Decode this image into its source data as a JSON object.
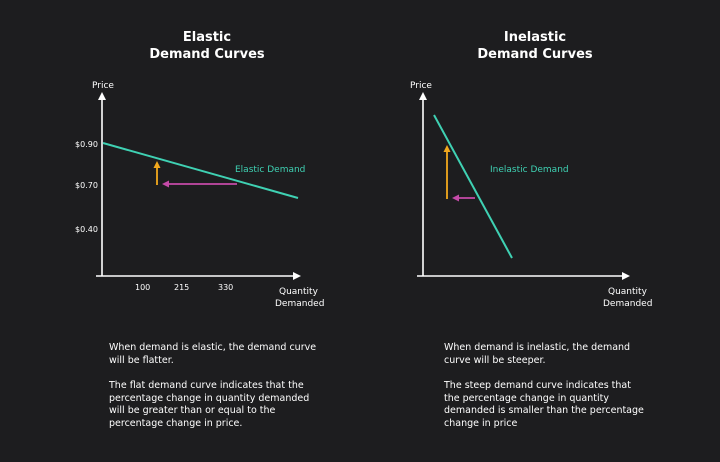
{
  "left_panel": {
    "title": "Elastic\nDemand Curves",
    "y_axis_label": "Price",
    "x_axis_label": "Quantity\nDemanded",
    "y_ticks": [
      "$0.90",
      "$0.70",
      "$0.40"
    ],
    "x_ticks": [
      "100",
      "215",
      "330"
    ],
    "curve_label": "Elastic Demand",
    "caption_1": "When demand is elastic, the demand curve will be flatter.",
    "caption_2": "The flat demand curve indicates that the percentage change in quantity demanded will be greater than or equal to the percentage change in price."
  },
  "right_panel": {
    "title": "Inelastic\nDemand Curves",
    "y_axis_label": "Price",
    "x_axis_label": "Quantity\nDemanded",
    "curve_label": "Inelastic Demand",
    "caption_1": "When demand is inelastic, the demand curve will be steeper.",
    "caption_2": "The steep demand curve indicates that the percentage change in quantity demanded is smaller than the percentage change in price"
  },
  "colors": {
    "background": "#1d1d1f",
    "axis": "#ffffff",
    "curve": "#3fd1b3",
    "price_arrow": "#f2a81d",
    "quantity_arrow": "#c54aa8"
  }
}
